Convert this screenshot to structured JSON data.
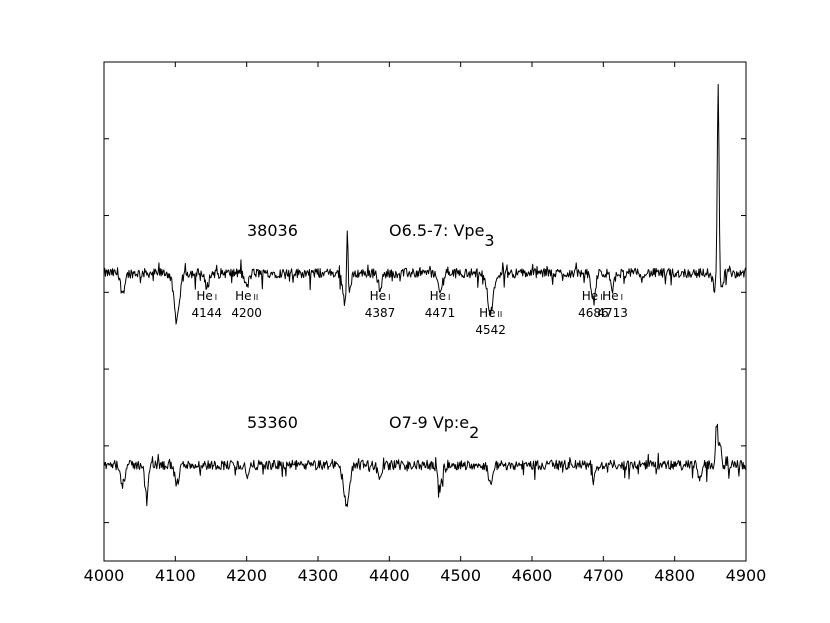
{
  "chart_data": {
    "type": "line",
    "title": "",
    "xlabel": "",
    "ylabel": "",
    "xlim": [
      4000,
      4900
    ],
    "ylim": [
      -0.2,
      2.4
    ],
    "xticks": [
      4000,
      4100,
      4200,
      4300,
      4400,
      4500,
      4600,
      4700,
      4800,
      4900
    ],
    "xtick_labels": [
      "4000",
      "4100",
      "4200",
      "4300",
      "4400",
      "4500",
      "4600",
      "4700",
      "4800",
      "4900"
    ],
    "yticks": [
      0.0,
      0.4,
      0.8,
      1.2,
      1.6,
      2.0,
      2.4
    ],
    "grid": false,
    "legend": "none",
    "series": [
      {
        "star_id": "38036",
        "spectral_type": "O6.5-7: Vpe",
        "spectral_type_sub": "3",
        "offset": 1.3,
        "color": "#000000",
        "features": [
          {
            "wl": 4026,
            "depth": 0.1,
            "width": 3
          },
          {
            "wl": 4102,
            "depth": 0.25,
            "width": 4
          },
          {
            "wl": 4144,
            "depth": 0.07,
            "width": 3
          },
          {
            "wl": 4200,
            "depth": 0.07,
            "width": 3
          },
          {
            "wl": 4340,
            "depth": 0.2,
            "width": 4
          },
          {
            "wl": 4341,
            "depth": -0.42,
            "width": 1.2
          },
          {
            "wl": 4387,
            "depth": 0.07,
            "width": 3
          },
          {
            "wl": 4471,
            "depth": 0.1,
            "width": 3
          },
          {
            "wl": 4542,
            "depth": 0.2,
            "width": 4
          },
          {
            "wl": 4686,
            "depth": 0.15,
            "width": 3
          },
          {
            "wl": 4713,
            "depth": 0.07,
            "width": 3
          },
          {
            "wl": 4856,
            "depth": 0.08,
            "width": 2
          },
          {
            "wl": 4861,
            "depth": -1.0,
            "width": 1.2
          },
          {
            "wl": 4866,
            "depth": 0.08,
            "width": 2
          }
        ]
      },
      {
        "star_id": "53360",
        "spectral_type": "O7-9 Vp:e",
        "spectral_type_sub": "2",
        "offset": 0.3,
        "color": "#000000",
        "features": [
          {
            "wl": 4026,
            "depth": 0.1,
            "width": 3
          },
          {
            "wl": 4060,
            "depth": 0.18,
            "width": 2
          },
          {
            "wl": 4102,
            "depth": 0.1,
            "width": 3
          },
          {
            "wl": 4198,
            "depth": -0.06,
            "width": 1.5
          },
          {
            "wl": 4200,
            "depth": 0.08,
            "width": 3
          },
          {
            "wl": 4340,
            "depth": 0.2,
            "width": 4
          },
          {
            "wl": 4387,
            "depth": 0.07,
            "width": 3
          },
          {
            "wl": 4471,
            "depth": 0.12,
            "width": 3
          },
          {
            "wl": 4542,
            "depth": 0.09,
            "width": 3
          },
          {
            "wl": 4686,
            "depth": 0.08,
            "width": 3
          },
          {
            "wl": 4835,
            "depth": 0.08,
            "width": 2
          },
          {
            "wl": 4859,
            "depth": -0.22,
            "width": 1.5
          },
          {
            "wl": 4864,
            "depth": -0.12,
            "width": 1.5
          }
        ]
      }
    ],
    "annotations": [
      {
        "ion": "He",
        "stage": "I",
        "wavelength": "4144",
        "x": 4144,
        "row": 1
      },
      {
        "ion": "He",
        "stage": "II",
        "wavelength": "4200",
        "x": 4200,
        "row": 1
      },
      {
        "ion": "He",
        "stage": "I",
        "wavelength": "4387",
        "x": 4387,
        "row": 1
      },
      {
        "ion": "He",
        "stage": "I",
        "wavelength": "4471",
        "x": 4471,
        "row": 1
      },
      {
        "ion": "He",
        "stage": "II",
        "wavelength": "4542",
        "x": 4542,
        "row": 2
      },
      {
        "ion": "He",
        "stage": "II",
        "wavelength": "4686",
        "x": 4686,
        "row": 1
      },
      {
        "ion": "He",
        "stage": "I",
        "wavelength": "4713",
        "x": 4713,
        "row": 1
      }
    ]
  }
}
